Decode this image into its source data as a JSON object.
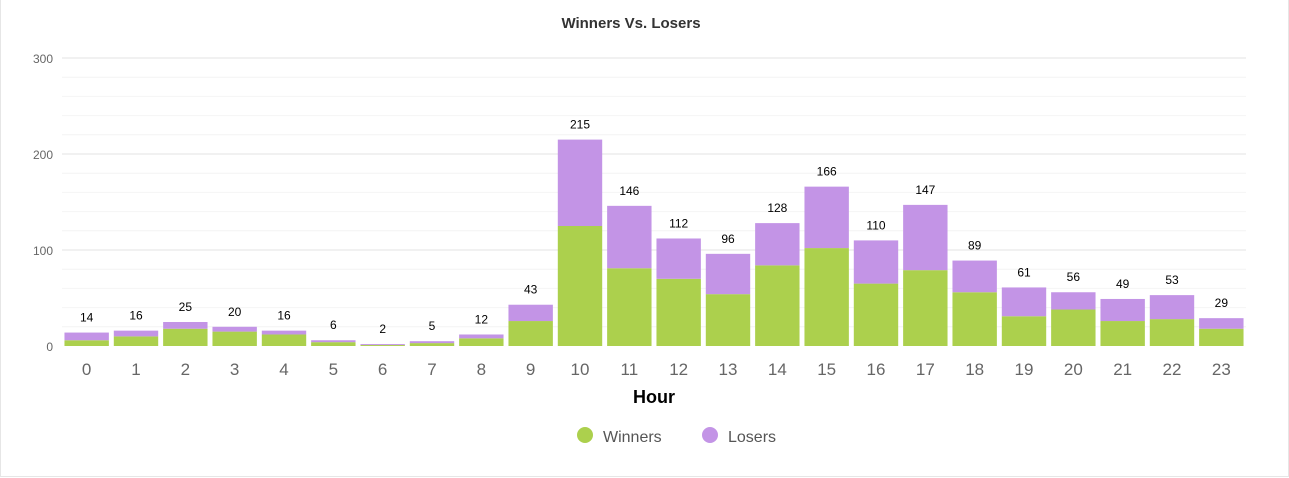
{
  "chart_data": {
    "type": "bar",
    "stacked": true,
    "title": "Winners Vs. Losers",
    "xlabel": "Hour",
    "ylabel": "",
    "ylim": [
      0,
      300
    ],
    "yticks": [
      0,
      100,
      200,
      300
    ],
    "grid": true,
    "legend_position": "bottom-center",
    "categories": [
      "0",
      "1",
      "2",
      "3",
      "4",
      "5",
      "6",
      "7",
      "8",
      "9",
      "10",
      "11",
      "12",
      "13",
      "14",
      "15",
      "16",
      "17",
      "18",
      "19",
      "20",
      "21",
      "22",
      "23"
    ],
    "series": [
      {
        "name": "Winners",
        "color": "#acd04d",
        "values": [
          6,
          10,
          18,
          15,
          12,
          4,
          1,
          3,
          8,
          26,
          125,
          81,
          70,
          54,
          84,
          102,
          65,
          79,
          56,
          31,
          38,
          26,
          28,
          18
        ]
      },
      {
        "name": "Losers",
        "color": "#c394e6",
        "values": [
          8,
          6,
          7,
          5,
          4,
          2,
          1,
          2,
          4,
          17,
          90,
          65,
          42,
          42,
          44,
          64,
          45,
          68,
          33,
          30,
          18,
          23,
          25,
          11
        ]
      }
    ],
    "totals": [
      14,
      16,
      25,
      20,
      16,
      6,
      2,
      5,
      12,
      43,
      215,
      146,
      112,
      96,
      128,
      166,
      110,
      147,
      89,
      61,
      56,
      49,
      53,
      29
    ]
  }
}
